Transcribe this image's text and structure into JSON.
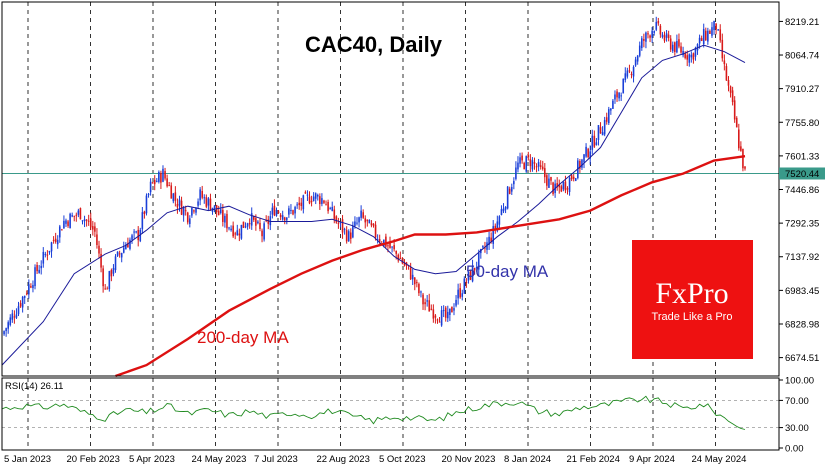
{
  "chart_data": {
    "type": "candlestick",
    "title": "CAC40, Daily",
    "price_panel": {
      "ylim": [
        6590,
        8290
      ],
      "yticks": [
        "8219.21",
        "8064.74",
        "7910.27",
        "7755.80",
        "7601.33",
        "7446.86",
        "7292.35",
        "7137.92",
        "6983.45",
        "6828.98",
        "6674.51"
      ],
      "current_price": "7520.44",
      "annotations": {
        "ma50": "50-day MA",
        "ma200": "200-day MA"
      }
    },
    "rsi_panel": {
      "label": "RSI(14) 26.11",
      "ylim": [
        0,
        100
      ],
      "yticks": [
        "100.00",
        "70.00",
        "30.00",
        "0.00"
      ],
      "levels": [
        70,
        30
      ]
    },
    "x_labels": [
      "5 Jan 2023",
      "20 Feb 2023",
      "5 Apr 2023",
      "24 May 2023",
      "7 Jul 2023",
      "22 Aug 2023",
      "5 Oct 2023",
      "20 Nov 2023",
      "8 Jan 2024",
      "21 Feb 2024",
      "9 Apr 2024",
      "24 May 2024"
    ],
    "close_path": [
      [
        0,
        6780
      ],
      [
        10,
        6950
      ],
      [
        20,
        7130
      ],
      [
        30,
        7300
      ],
      [
        38,
        7340
      ],
      [
        45,
        7250
      ],
      [
        50,
        6980
      ],
      [
        54,
        7100
      ],
      [
        60,
        7200
      ],
      [
        66,
        7240
      ],
      [
        72,
        7460
      ],
      [
        78,
        7520
      ],
      [
        84,
        7400
      ],
      [
        90,
        7330
      ],
      [
        96,
        7420
      ],
      [
        102,
        7370
      ],
      [
        108,
        7300
      ],
      [
        114,
        7250
      ],
      [
        120,
        7320
      ],
      [
        126,
        7240
      ],
      [
        132,
        7360
      ],
      [
        138,
        7330
      ],
      [
        144,
        7370
      ],
      [
        150,
        7420
      ],
      [
        156,
        7400
      ],
      [
        162,
        7300
      ],
      [
        168,
        7230
      ],
      [
        174,
        7320
      ],
      [
        180,
        7250
      ],
      [
        186,
        7200
      ],
      [
        192,
        7140
      ],
      [
        198,
        7060
      ],
      [
        204,
        6930
      ],
      [
        210,
        6880
      ],
      [
        216,
        6850
      ],
      [
        220,
        6950
      ],
      [
        226,
        7040
      ],
      [
        232,
        7140
      ],
      [
        238,
        7250
      ],
      [
        244,
        7400
      ],
      [
        250,
        7560
      ],
      [
        256,
        7580
      ],
      [
        262,
        7520
      ],
      [
        268,
        7440
      ],
      [
        274,
        7480
      ],
      [
        280,
        7560
      ],
      [
        286,
        7660
      ],
      [
        292,
        7760
      ],
      [
        298,
        7880
      ],
      [
        304,
        7980
      ],
      [
        310,
        8120
      ],
      [
        316,
        8200
      ],
      [
        322,
        8130
      ],
      [
        328,
        8090
      ],
      [
        334,
        8060
      ],
      [
        340,
        8150
      ],
      [
        346,
        8200
      ],
      [
        350,
        8000
      ],
      [
        354,
        7820
      ],
      [
        357,
        7660
      ],
      [
        360,
        7520
      ]
    ],
    "ma50_path": [
      [
        0,
        6640
      ],
      [
        20,
        6840
      ],
      [
        35,
        7060
      ],
      [
        50,
        7150
      ],
      [
        60,
        7190
      ],
      [
        70,
        7260
      ],
      [
        80,
        7340
      ],
      [
        90,
        7370
      ],
      [
        100,
        7350
      ],
      [
        110,
        7370
      ],
      [
        120,
        7330
      ],
      [
        130,
        7300
      ],
      [
        140,
        7300
      ],
      [
        150,
        7300
      ],
      [
        160,
        7310
      ],
      [
        170,
        7280
      ],
      [
        180,
        7230
      ],
      [
        190,
        7140
      ],
      [
        200,
        7080
      ],
      [
        210,
        7060
      ],
      [
        220,
        7070
      ],
      [
        230,
        7150
      ],
      [
        240,
        7230
      ],
      [
        250,
        7300
      ],
      [
        260,
        7380
      ],
      [
        270,
        7470
      ],
      [
        280,
        7550
      ],
      [
        290,
        7640
      ],
      [
        300,
        7800
      ],
      [
        310,
        7960
      ],
      [
        320,
        8040
      ],
      [
        330,
        8070
      ],
      [
        340,
        8110
      ],
      [
        350,
        8080
      ],
      [
        360,
        8030
      ]
    ],
    "ma200_path": [
      [
        55,
        6590
      ],
      [
        70,
        6640
      ],
      [
        90,
        6760
      ],
      [
        110,
        6890
      ],
      [
        130,
        6990
      ],
      [
        145,
        7060
      ],
      [
        160,
        7120
      ],
      [
        175,
        7170
      ],
      [
        190,
        7210
      ],
      [
        200,
        7240
      ],
      [
        215,
        7240
      ],
      [
        230,
        7250
      ],
      [
        250,
        7280
      ],
      [
        270,
        7310
      ],
      [
        285,
        7350
      ],
      [
        300,
        7420
      ],
      [
        315,
        7480
      ],
      [
        330,
        7520
      ],
      [
        345,
        7580
      ],
      [
        360,
        7600
      ]
    ],
    "rsi_path": [
      [
        0,
        58
      ],
      [
        10,
        62
      ],
      [
        20,
        60
      ],
      [
        30,
        64
      ],
      [
        40,
        52
      ],
      [
        50,
        44
      ],
      [
        60,
        56
      ],
      [
        70,
        52
      ],
      [
        80,
        62
      ],
      [
        90,
        50
      ],
      [
        100,
        56
      ],
      [
        110,
        48
      ],
      [
        120,
        54
      ],
      [
        130,
        46
      ],
      [
        140,
        52
      ],
      [
        150,
        48
      ],
      [
        160,
        55
      ],
      [
        170,
        46
      ],
      [
        180,
        40
      ],
      [
        190,
        46
      ],
      [
        200,
        44
      ],
      [
        210,
        40
      ],
      [
        220,
        52
      ],
      [
        230,
        60
      ],
      [
        240,
        66
      ],
      [
        250,
        68
      ],
      [
        260,
        54
      ],
      [
        270,
        50
      ],
      [
        280,
        60
      ],
      [
        290,
        62
      ],
      [
        300,
        68
      ],
      [
        310,
        72
      ],
      [
        320,
        68
      ],
      [
        330,
        58
      ],
      [
        340,
        64
      ],
      [
        350,
        44
      ],
      [
        355,
        36
      ],
      [
        360,
        26
      ]
    ]
  },
  "branding": {
    "logo": "FxPro",
    "tagline": "Trade Like a Pro"
  }
}
